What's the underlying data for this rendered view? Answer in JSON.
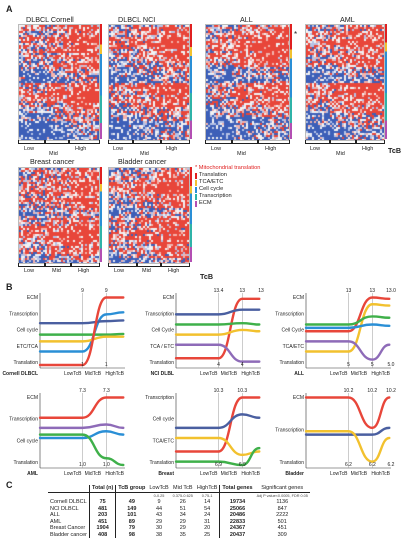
{
  "panel_labels": {
    "a": "A",
    "b": "B",
    "c": "C"
  },
  "colors": {
    "red": "#e8463a",
    "blue": "#3d5fb8",
    "white": "#f4f4f4",
    "translation": "#e02020",
    "tca": "#f2c12e",
    "cellcycle": "#2a8fd6",
    "transcription": "#2fb3a8",
    "ecm": "#b34fb3",
    "mito": "#e02020"
  },
  "heatmaps": [
    {
      "title": "DLBCL Cornell",
      "ticks": [
        "Low",
        "Mid",
        "High"
      ]
    },
    {
      "title": "DLBCL NCI",
      "ticks": [
        "Low",
        "Mid",
        "High"
      ]
    },
    {
      "title": "ALL",
      "ticks": [
        "Low",
        "Mid",
        "High"
      ]
    },
    {
      "title": "AML",
      "ticks": [
        "Low",
        "Mid",
        "High"
      ]
    },
    {
      "title": "Breast cancer",
      "ticks": [
        "Low",
        "Mid",
        "High"
      ]
    },
    {
      "title": "Bladder cancer",
      "ticks": [
        "Low",
        "Mid",
        "High"
      ]
    }
  ],
  "tcb_label": "TcB",
  "star": "*",
  "legend": [
    {
      "text": "* Mitochondrial translation",
      "color": "#e02020"
    },
    {
      "text": "Translation",
      "color": "#e02020"
    },
    {
      "text": "TCA/ETC",
      "color": "#f2c12e"
    },
    {
      "text": "Cell cycle",
      "color": "#2a8fd6"
    },
    {
      "text": "Transcription",
      "color": "#2fb3a8"
    },
    {
      "text": "ECM",
      "color": "#b34fb3"
    }
  ],
  "chart_data": [
    {
      "type": "line",
      "name_label": "Cornell DLBCL",
      "categories": [
        "LowTcB",
        "MidTcB",
        "HighTcB"
      ],
      "ylabels": [
        "ECM",
        "Transcription",
        "Cell cycle",
        "ETC/TCA",
        "Translation"
      ],
      "top_values": [
        "9",
        "9"
      ],
      "bottom_values": [
        "1",
        "1"
      ],
      "series": [
        {
          "name": "ECM",
          "color": "#2a8fd6",
          "values": [
            0.2,
            0.75,
            0.78
          ]
        },
        {
          "name": "Transcription",
          "color": "#4a5fa0",
          "values": [
            0.62,
            0.65,
            0.66
          ]
        },
        {
          "name": "Cell cycle",
          "color": "#3fb04a",
          "values": [
            0.45,
            0.45,
            0.46
          ]
        },
        {
          "name": "ETC/TCA",
          "color": "#f2c12e",
          "values": [
            0.35,
            0.42,
            0.42
          ]
        },
        {
          "name": "Translation",
          "color": "#e8463a",
          "values": [
            0.0,
            1.0,
            1.0
          ]
        }
      ]
    },
    {
      "type": "line",
      "name_label": "NCI DLBL",
      "categories": [
        "LowTcB",
        "MidTcB",
        "HighTcB"
      ],
      "ylabels": [
        "ECM",
        "Transcription",
        "Cell Cycle",
        "TCA / ETC",
        "Translation"
      ],
      "top_values": [
        "13.4",
        "13",
        "13"
      ],
      "bottom_values": [
        "4",
        "4"
      ],
      "series": [
        {
          "name": "ECM",
          "color": "#e8463a",
          "values": [
            0.1,
            0.98,
            0.98
          ]
        },
        {
          "name": "Transcription",
          "color": "#4a5fa0",
          "values": [
            0.75,
            0.82,
            0.82
          ]
        },
        {
          "name": "Cell Cycle",
          "color": "#3fb04a",
          "values": [
            0.6,
            0.62,
            0.6
          ]
        },
        {
          "name": "TCA / ETC",
          "color": "#f2c12e",
          "values": [
            0.45,
            0.52,
            0.5
          ]
        },
        {
          "name": "Translation",
          "color": "#8e6bb8",
          "values": [
            0.3,
            0.05,
            0.05
          ]
        }
      ]
    },
    {
      "type": "line",
      "name_label": "ALL",
      "categories": [
        "LowTcB",
        "MidTcB",
        "HighTcB"
      ],
      "ylabels": [
        "ECM",
        "Transcription",
        "Cell Cycle",
        "TCA/ETC",
        "Translation"
      ],
      "top_values": [
        "13",
        "13",
        "13.0"
      ],
      "bottom_values": [
        "5",
        "5",
        "5.0"
      ],
      "series": [
        {
          "name": "ECM",
          "color": "#f2c12e",
          "values": [
            0.2,
            0.9,
            0.88
          ]
        },
        {
          "name": "Transcription",
          "color": "#e8463a",
          "values": [
            0.5,
            1.0,
            0.98
          ]
        },
        {
          "name": "Cell Cycle",
          "color": "#3fb04a",
          "values": [
            0.6,
            0.72,
            0.7
          ]
        },
        {
          "name": "TCA/ETC",
          "color": "#2a8fd6",
          "values": [
            0.55,
            0.6,
            0.58
          ]
        },
        {
          "name": "Translation",
          "color": "#8e6bb8",
          "values": [
            0.35,
            0.08,
            0.3
          ]
        }
      ]
    },
    {
      "type": "line",
      "name_label": "AML",
      "categories": [
        "LowTcB",
        "MidTcB",
        "HighTcB"
      ],
      "ylabels": [
        "ECM",
        "Transcription",
        "Cell cycle",
        "Translation"
      ],
      "top_values": [
        "7.3",
        "7.3"
      ],
      "bottom_values": [
        "1.0",
        "1.0"
      ],
      "series": [
        {
          "name": "ECM",
          "color": "#e8463a",
          "values": [
            0.7,
            1.0,
            1.0
          ]
        },
        {
          "name": "Transcription",
          "color": "#8e6bb8",
          "values": [
            0.55,
            0.6,
            0.55
          ]
        },
        {
          "name": "Cell cycle",
          "color": "#2a8fd6",
          "values": [
            0.4,
            0.5,
            0.45
          ]
        },
        {
          "name": "Translation",
          "color": "#3fb04a",
          "values": [
            0.45,
            0.1,
            0.0
          ]
        }
      ]
    },
    {
      "type": "line",
      "name_label": "Breast",
      "categories": [
        "LowTcB",
        "MidTcB",
        "HighTcB"
      ],
      "ylabels": [
        "Transcription",
        "Cell cycle",
        "TCA/ETC",
        "Translation"
      ],
      "top_values": [
        "10.3",
        "10.3"
      ],
      "bottom_values": [
        "6.9",
        "6.9"
      ],
      "series": [
        {
          "name": "Transcription",
          "color": "#e8463a",
          "values": [
            0.2,
            1.0,
            1.0
          ]
        },
        {
          "name": "Cell cycle",
          "color": "#4a5fa0",
          "values": [
            0.55,
            0.75,
            0.7
          ]
        },
        {
          "name": "TCA/ETC",
          "color": "#f2c12e",
          "values": [
            0.4,
            0.15,
            0.2
          ]
        },
        {
          "name": "Translation",
          "color": "#3fb04a",
          "values": [
            0.05,
            0.0,
            0.25
          ]
        }
      ]
    },
    {
      "type": "line",
      "name_label": "Bladder",
      "categories": [
        "LowTcB",
        "MidTcB",
        "HighTcB"
      ],
      "ylabels": [
        "ECM",
        "Transcription",
        "Translation"
      ],
      "top_values": [
        "10.2",
        "10.2",
        "10.2"
      ],
      "bottom_values": [
        "6.2",
        "6.2",
        "6.2"
      ],
      "series": [
        {
          "name": "ECM",
          "color": "#e8463a",
          "values": [
            1.0,
            0.55,
            1.0
          ]
        },
        {
          "name": "Transcription",
          "color": "#4a5fa0",
          "values": [
            0.45,
            0.45,
            0.55
          ]
        },
        {
          "name": "Translation",
          "color": "#f2c12e",
          "values": [
            0.5,
            0.05,
            0.4
          ]
        }
      ]
    }
  ],
  "table": {
    "headers": [
      "",
      "Total (n)",
      "TcB group",
      "LowTcB",
      "Mid TcB",
      "HighTcB",
      "Total genes",
      "Significant genes"
    ],
    "subheaders": [
      "",
      "",
      "",
      "0-0.25",
      "0.375-0.625",
      "0.75-1",
      "",
      "Adj P value<0.0005, FDR 0.05"
    ],
    "rows": [
      [
        "Cornell DLBCL",
        "75",
        "49",
        "9",
        "26",
        "14",
        "19734",
        "1136"
      ],
      [
        "NCI DLBCL",
        "481",
        "149",
        "44",
        "51",
        "54",
        "25066",
        "847"
      ],
      [
        "ALL",
        "203",
        "101",
        "43",
        "34",
        "24",
        "20486",
        "2222"
      ],
      [
        "AML",
        "451",
        "89",
        "29",
        "29",
        "31",
        "22833",
        "501"
      ],
      [
        "Breast Cancer",
        "1904",
        "79",
        "30",
        "29",
        "20",
        "24367",
        "451"
      ],
      [
        "Bladder cancer",
        "408",
        "98",
        "38",
        "35",
        "25",
        "20437",
        "309"
      ]
    ]
  }
}
